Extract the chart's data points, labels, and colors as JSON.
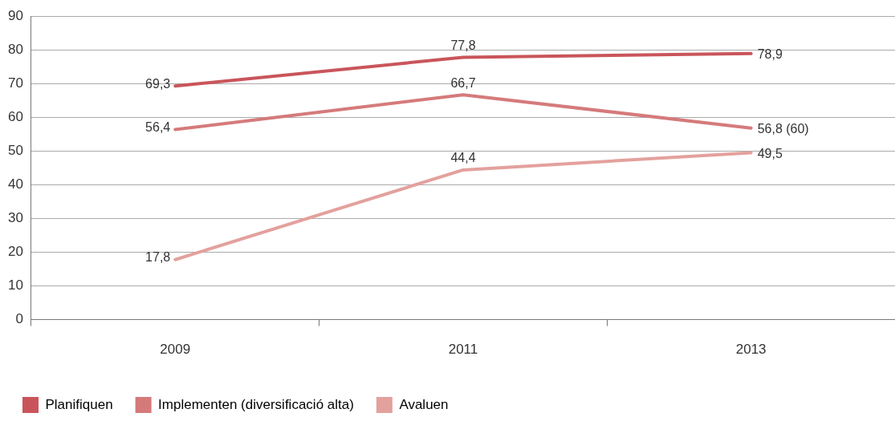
{
  "chart_data": {
    "type": "line",
    "categories": [
      "2009",
      "2011",
      "2013"
    ],
    "series": [
      {
        "name": "Planifiquen",
        "color": "#c9555b",
        "values": [
          69.3,
          77.8,
          78.9
        ],
        "value_labels": [
          "69,3",
          "77,8",
          "78,9"
        ]
      },
      {
        "name": "Implementen (diversificació alta)",
        "color": "#d57a7b",
        "values": [
          56.4,
          66.7,
          56.8
        ],
        "value_labels": [
          "56,4",
          "66,7",
          "56,8 (60)"
        ]
      },
      {
        "name": "Avaluen",
        "color": "#e3a19d",
        "values": [
          17.8,
          44.4,
          49.5
        ],
        "value_labels": [
          "17,8",
          "44,4",
          "49,5"
        ]
      }
    ],
    "ylim": [
      0,
      90
    ],
    "yticks": [
      0,
      10,
      20,
      30,
      40,
      50,
      60,
      70,
      80,
      90
    ],
    "grid": "y",
    "legend": "bottom left",
    "marker": "none",
    "line_style": "solid"
  }
}
